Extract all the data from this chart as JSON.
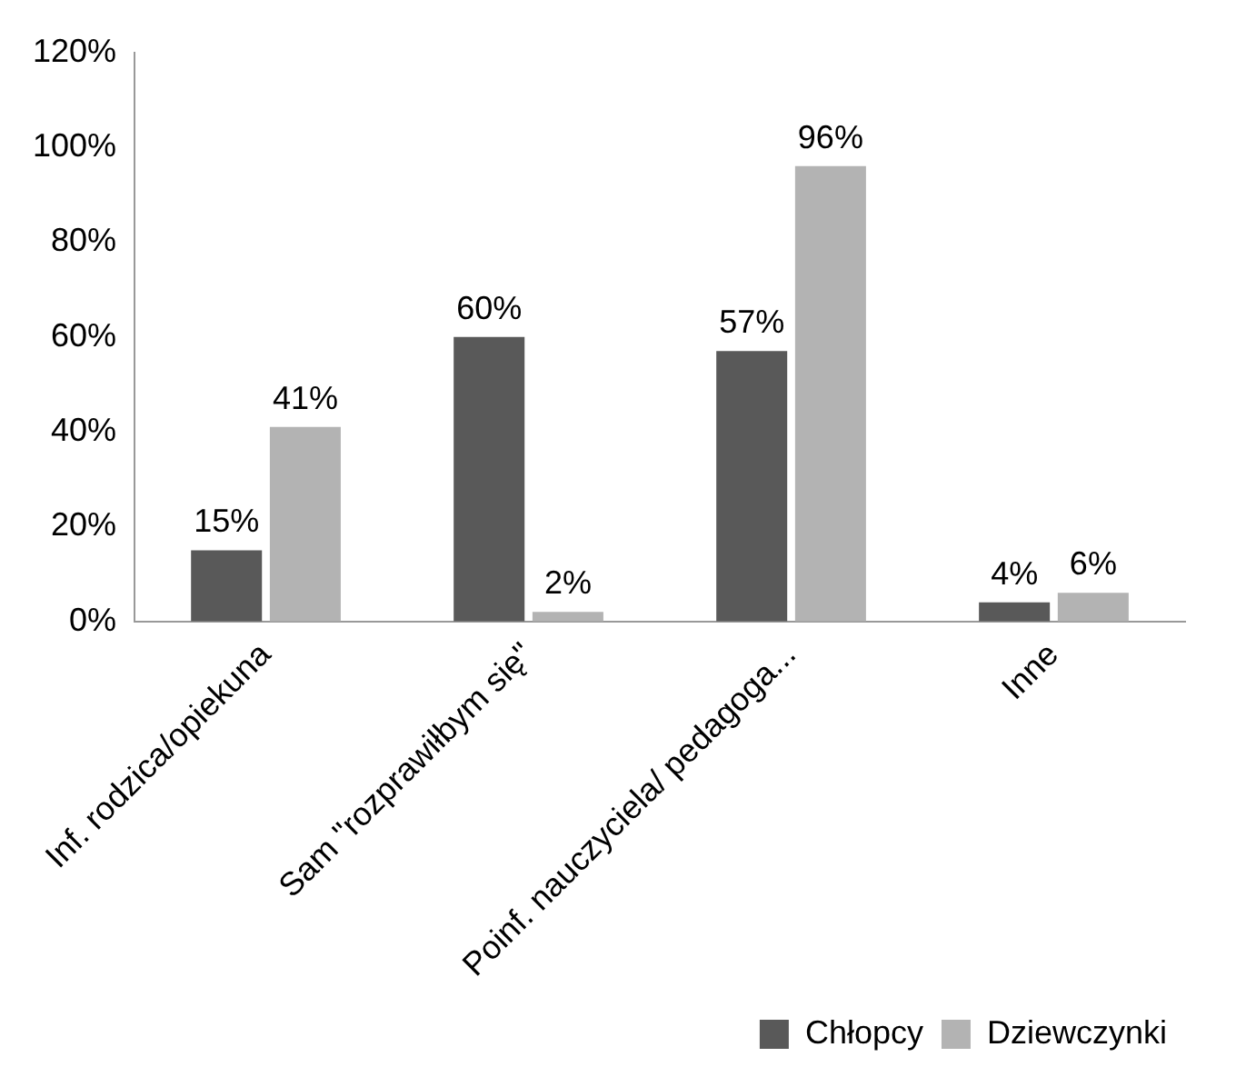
{
  "chart_data": {
    "type": "bar",
    "categories": [
      "Inf. rodzica/opiekuna",
      "Sam \"rozprawiłbym się\"",
      "Poinf. nauczyciela/ pedagoga...",
      "Inne"
    ],
    "series": [
      {
        "name": "Chłopcy",
        "color": "#595959",
        "values": [
          15,
          60,
          57,
          4
        ],
        "value_labels": [
          "15%",
          "60%",
          "57%",
          "4%"
        ]
      },
      {
        "name": "Dziewczynki",
        "color": "#b3b3b3",
        "values": [
          41,
          2,
          96,
          6
        ],
        "value_labels": [
          "41%",
          "2%",
          "96%",
          "6%"
        ]
      }
    ],
    "ylim": [
      0,
      120
    ],
    "yticks": [
      {
        "value": 0,
        "label": "0%"
      },
      {
        "value": 20,
        "label": "20%"
      },
      {
        "value": 40,
        "label": "40%"
      },
      {
        "value": 60,
        "label": "60%"
      },
      {
        "value": 80,
        "label": "80%"
      },
      {
        "value": 100,
        "label": "100%"
      },
      {
        "value": 120,
        "label": "120%"
      }
    ],
    "grid": false,
    "legend": "bottom right"
  }
}
